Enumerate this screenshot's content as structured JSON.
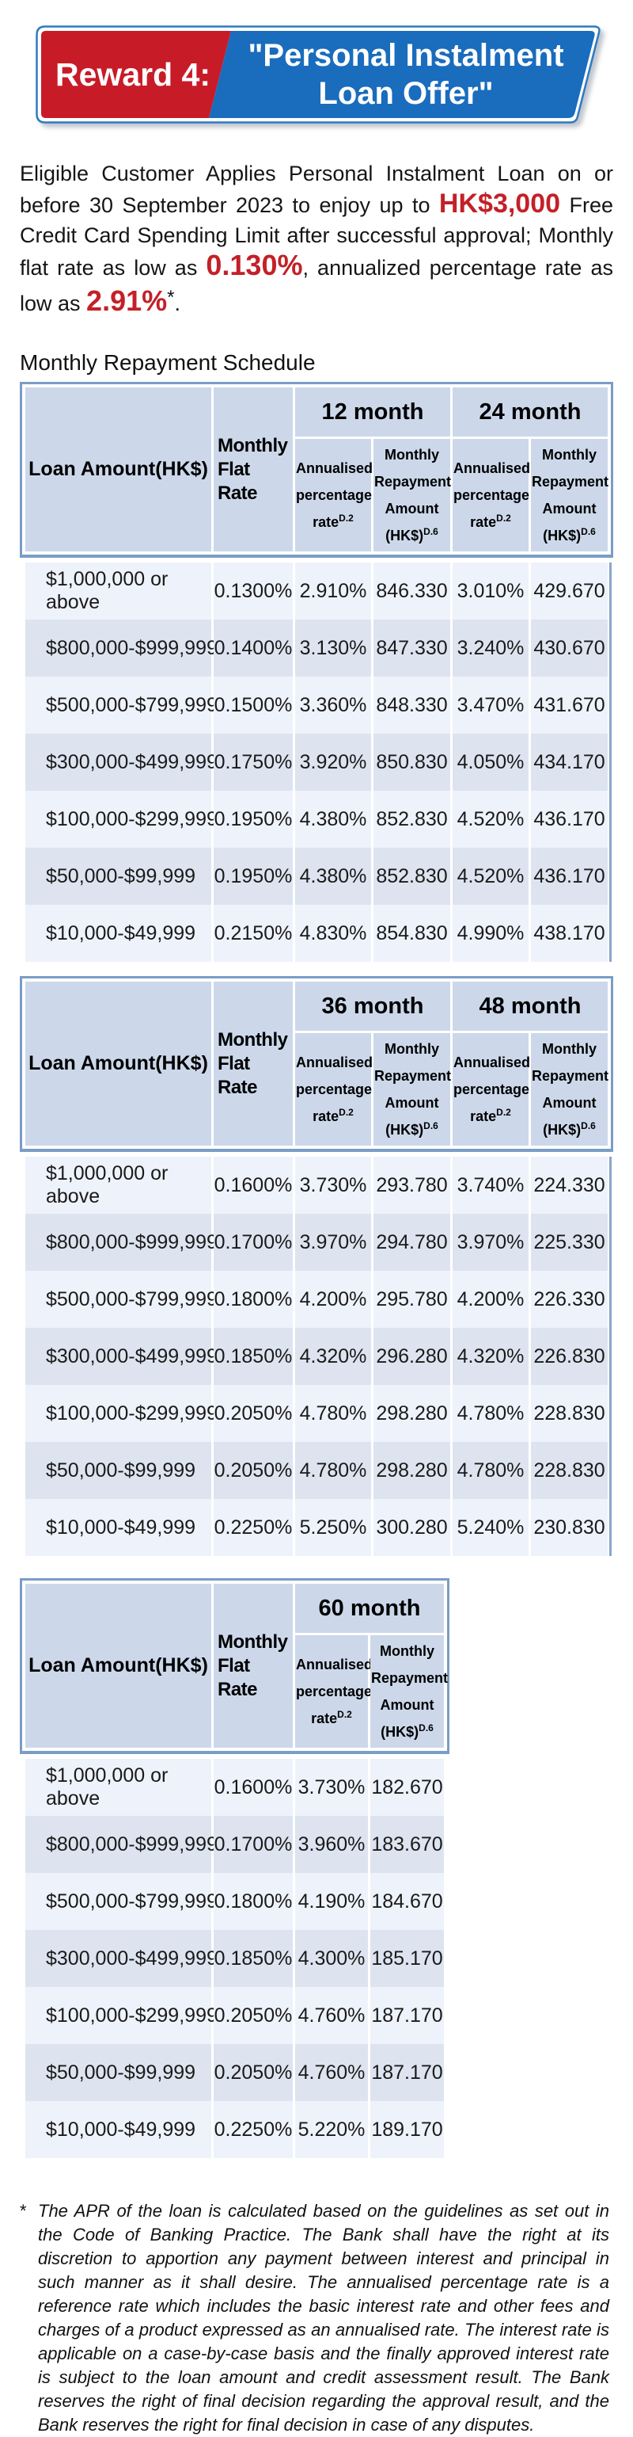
{
  "banner": {
    "label": "Reward 4:",
    "title_line1": "\"Personal Instalment",
    "title_line2": "Loan Offer\""
  },
  "intro": {
    "segments": [
      {
        "text": "Eligible Customer Applies Personal Instalment Loan on or before 30 September 2023 to enjoy up to "
      },
      {
        "text": "HK$3,000"
      },
      {
        "text": " Free Credit Card Spending Limit after successful approval; Monthly flat rate as low as "
      },
      {
        "text": "0.130%"
      },
      {
        "text": ", annualized percentage rate as low as "
      },
      {
        "text": "2.91%"
      },
      {
        "text": "*"
      },
      {
        "text": "."
      }
    ]
  },
  "schedule_heading": "Monthly Repayment Schedule",
  "header_labels": {
    "loan_amount": "Loan Amount(HK$)",
    "monthly_flat_rate": "Monthly Flat Rate",
    "annualised_rate": "Annualised percentage rate",
    "annualised_sup": "D.2",
    "repayment_amount": "Monthly Repayment Amount (HK$)",
    "repayment_sup": "D.6"
  },
  "tables": [
    {
      "tenors": [
        "12 month",
        "24 month"
      ],
      "rows": [
        [
          "$1,000,000 or above",
          "0.1300%",
          "2.910%",
          "846.330",
          "3.010%",
          "429.670"
        ],
        [
          "$800,000-$999,999",
          "0.1400%",
          "3.130%",
          "847.330",
          "3.240%",
          "430.670"
        ],
        [
          "$500,000-$799,999",
          "0.1500%",
          "3.360%",
          "848.330",
          "3.470%",
          "431.670"
        ],
        [
          "$300,000-$499,999",
          "0.1750%",
          "3.920%",
          "850.830",
          "4.050%",
          "434.170"
        ],
        [
          "$100,000-$299,999",
          "0.1950%",
          "4.380%",
          "852.830",
          "4.520%",
          "436.170"
        ],
        [
          "$50,000-$99,999",
          "0.1950%",
          "4.380%",
          "852.830",
          "4.520%",
          "436.170"
        ],
        [
          "$10,000-$49,999",
          "0.2150%",
          "4.830%",
          "854.830",
          "4.990%",
          "438.170"
        ]
      ]
    },
    {
      "tenors": [
        "36 month",
        "48 month"
      ],
      "rows": [
        [
          "$1,000,000 or above",
          "0.1600%",
          "3.730%",
          "293.780",
          "3.740%",
          "224.330"
        ],
        [
          "$800,000-$999,999",
          "0.1700%",
          "3.970%",
          "294.780",
          "3.970%",
          "225.330"
        ],
        [
          "$500,000-$799,999",
          "0.1800%",
          "4.200%",
          "295.780",
          "4.200%",
          "226.330"
        ],
        [
          "$300,000-$499,999",
          "0.1850%",
          "4.320%",
          "296.280",
          "4.320%",
          "226.830"
        ],
        [
          "$100,000-$299,999",
          "0.2050%",
          "4.780%",
          "298.280",
          "4.780%",
          "228.830"
        ],
        [
          "$50,000-$99,999",
          "0.2050%",
          "4.780%",
          "298.280",
          "4.780%",
          "228.830"
        ],
        [
          "$10,000-$49,999",
          "0.2250%",
          "5.250%",
          "300.280",
          "5.240%",
          "230.830"
        ]
      ]
    },
    {
      "tenors": [
        "60 month"
      ],
      "rows": [
        [
          "$1,000,000 or above",
          "0.1600%",
          "3.730%",
          "182.670"
        ],
        [
          "$800,000-$999,999",
          "0.1700%",
          "3.960%",
          "183.670"
        ],
        [
          "$500,000-$799,999",
          "0.1800%",
          "4.190%",
          "184.670"
        ],
        [
          "$300,000-$499,999",
          "0.1850%",
          "4.300%",
          "185.170"
        ],
        [
          "$100,000-$299,999",
          "0.2050%",
          "4.760%",
          "187.170"
        ],
        [
          "$50,000-$99,999",
          "0.2050%",
          "4.760%",
          "187.170"
        ],
        [
          "$10,000-$49,999",
          "0.2250%",
          "5.220%",
          "189.170"
        ]
      ]
    }
  ],
  "footnote": {
    "marker": "*",
    "text": "The APR of the loan is calculated based on the guidelines as set out in the Code of Banking Practice. The Bank shall have the right at its discretion to apportion any payment between interest and principal in such manner as it shall desire. The annualised percentage rate is a reference rate which includes the basic interest rate and other fees and charges of a product expressed as an annualised rate. The interest rate is applicable on a case-by-case basis and the finally approved interest rate is subject to the loan amount and credit assessment result. The Bank reserves the right of final decision regarding the approval result, and the Bank reserves the right for final decision in case of any disputes."
  },
  "colors": {
    "banner_red": "#c81b28",
    "banner_blue": "#1a6cbd",
    "banner_outline_blue": "#2e7ac2",
    "highlight_red": "#c42028",
    "table_border_blue": "#7a9dc6",
    "header_cell_bg": "#ccd8ea",
    "row_light": "#eef2fa",
    "row_dark": "#dde4f0"
  }
}
